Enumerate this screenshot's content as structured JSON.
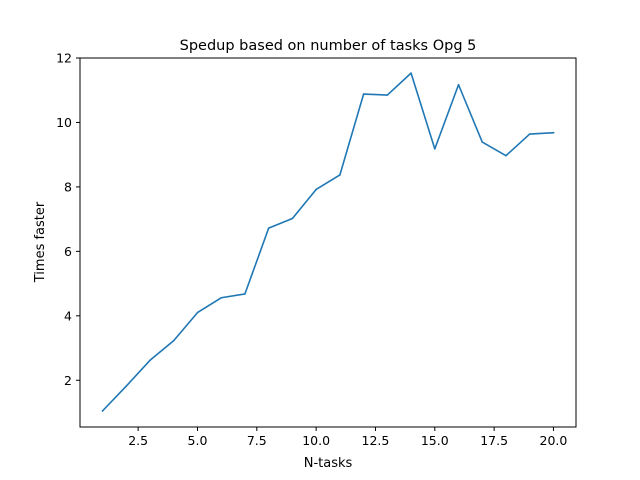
{
  "chart_data": {
    "type": "line",
    "title": "Spedup based on number of tasks Opg 5",
    "xlabel": "N-tasks",
    "ylabel": "Times faster",
    "xlim": [
      0.05,
      20.95
    ],
    "ylim": [
      0.55,
      12.0
    ],
    "xticks": [
      2.5,
      5.0,
      7.5,
      10.0,
      12.5,
      15.0,
      17.5,
      20.0
    ],
    "xtick_labels": [
      "2.5",
      "5.0",
      "7.5",
      "10.0",
      "12.5",
      "15.0",
      "17.5",
      "20.0"
    ],
    "yticks": [
      2,
      4,
      6,
      8,
      10,
      12
    ],
    "ytick_labels": [
      "2",
      "4",
      "6",
      "8",
      "10",
      "12"
    ],
    "grid": false,
    "series": [
      {
        "color": "#1f77b4",
        "x": [
          1,
          2,
          3,
          4,
          5,
          6,
          7,
          8,
          9,
          10,
          11,
          12,
          13,
          14,
          15,
          16,
          17,
          18,
          19,
          20
        ],
        "values": [
          1.05,
          1.82,
          2.62,
          3.23,
          4.1,
          4.56,
          4.68,
          6.72,
          7.02,
          7.92,
          8.37,
          10.88,
          10.85,
          11.53,
          9.18,
          11.17,
          9.39,
          8.97,
          9.64,
          9.68
        ]
      }
    ]
  }
}
